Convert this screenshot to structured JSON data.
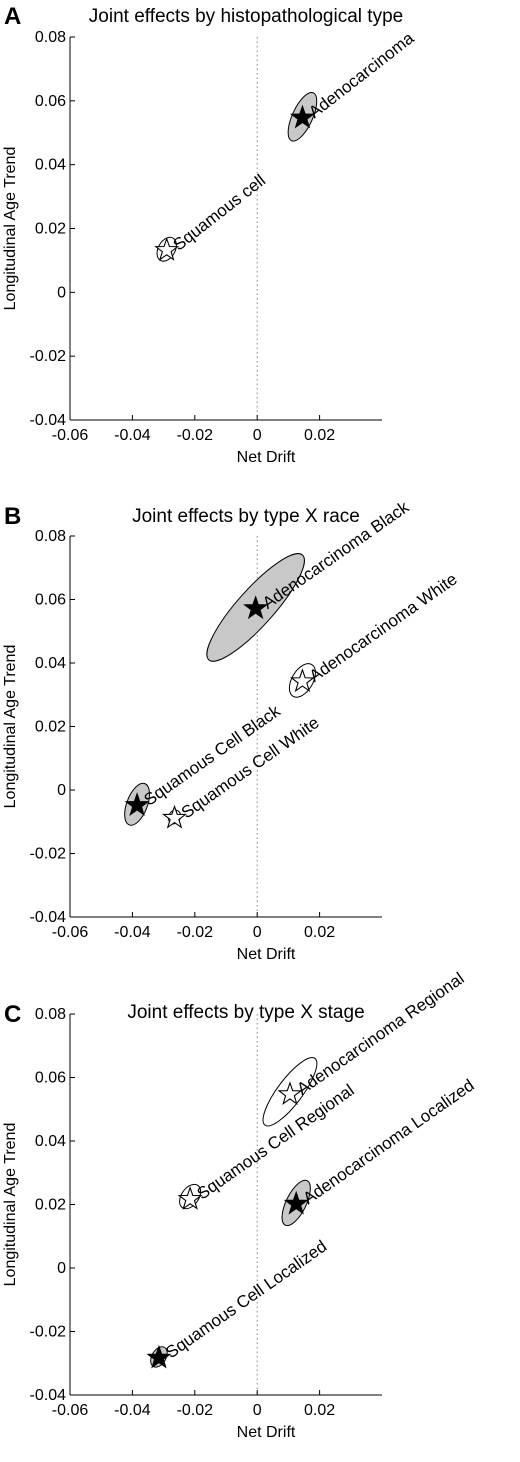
{
  "chart_data": [
    {
      "type": "scatter",
      "panel": "A",
      "title": "Joint effects by histopathological type",
      "xlabel": "Net Drift",
      "ylabel": "Longitudinal Age Trend",
      "xlim": [
        -0.06,
        0.04
      ],
      "ylim": [
        -0.04,
        0.08
      ],
      "xticks": [
        "-0.06",
        "-0.04",
        "-0.02",
        "0",
        "0.02"
      ],
      "yticks": [
        "0.08",
        "0.06",
        "0.04",
        "0.02",
        "0",
        "-0.02",
        "-0.04"
      ],
      "reference_line": "x = 0 (dotted)",
      "points": [
        {
          "label": "Adenocarcinoma",
          "x": 0.0145,
          "y": 0.055,
          "marker": "filled-star",
          "ellipse_fill": "#c8c8c8",
          "ellipse": {
            "center": [
              0.0145,
              0.055
            ],
            "half_major": [
              0.0035,
              0.0075
            ],
            "half_minor_x": 0.0025
          }
        },
        {
          "label": "Squamous cell",
          "x": -0.029,
          "y": 0.0135,
          "marker": "open-star",
          "ellipse_fill": "#ffffff",
          "ellipse": {
            "center": [
              -0.029,
              0.0135
            ],
            "half_major": [
              0.002,
              0.0035
            ],
            "half_minor_x": 0.002
          }
        }
      ]
    },
    {
      "type": "scatter",
      "panel": "B",
      "title": "Joint effects by type X race",
      "xlabel": "Net Drift",
      "ylabel": "Longitudinal Age Trend",
      "xlim": [
        -0.06,
        0.04
      ],
      "ylim": [
        -0.04,
        0.08
      ],
      "xticks": [
        "-0.06",
        "-0.04",
        "-0.02",
        "0",
        "0.02"
      ],
      "yticks": [
        "0.08",
        "0.06",
        "0.04",
        "0.02",
        "0",
        "-0.02",
        "-0.04"
      ],
      "reference_line": "x = 0 (dotted)",
      "points": [
        {
          "label": "Adenocarcinoma Black",
          "x": -0.0005,
          "y": 0.0575,
          "marker": "filled-star",
          "ellipse_fill": "#c8c8c8",
          "ellipse": {
            "center": [
              -0.0005,
              0.0575
            ],
            "half_major": [
              0.015,
              0.0165
            ],
            "half_minor_x": 0.0065
          }
        },
        {
          "label": "Adenocarcinoma White",
          "x": 0.0145,
          "y": 0.0345,
          "marker": "open-star",
          "ellipse_fill": "#ffffff",
          "ellipse": {
            "center": [
              0.0145,
              0.0345
            ],
            "half_major": [
              0.003,
              0.005
            ],
            "half_minor_x": 0.0028
          }
        },
        {
          "label": "Squamous Cell Black",
          "x": -0.0385,
          "y": -0.0045,
          "marker": "filled-star",
          "ellipse_fill": "#c8c8c8",
          "ellipse": {
            "center": [
              -0.0385,
              -0.0045
            ],
            "half_major": [
              0.0025,
              0.0065
            ],
            "half_minor_x": 0.0025
          }
        },
        {
          "label": "Squamous Cell White",
          "x": -0.0265,
          "y": -0.0085,
          "marker": "open-star",
          "ellipse_fill": "#ffffff",
          "ellipse": {
            "center": [
              -0.0265,
              -0.0085
            ],
            "half_major": [
              0.001,
              0.002
            ],
            "half_minor_x": 0.001
          }
        }
      ]
    },
    {
      "type": "scatter",
      "panel": "C",
      "title": "Joint effects by type X stage",
      "xlabel": "Net Drift",
      "ylabel": "Longitudinal Age Trend",
      "xlim": [
        -0.06,
        0.04
      ],
      "ylim": [
        -0.04,
        0.08
      ],
      "xticks": [
        "-0.06",
        "-0.04",
        "-0.02",
        "0",
        "0.02"
      ],
      "yticks": [
        "0.08",
        "0.06",
        "0.04",
        "0.02",
        "0",
        "-0.02",
        "-0.04"
      ],
      "reference_line": "x = 0 (dotted)",
      "points": [
        {
          "label": "Adenocarcinoma Regional",
          "x": 0.0105,
          "y": 0.055,
          "marker": "open-star",
          "ellipse_fill": "#ffffff",
          "ellipse": {
            "center": [
              0.0105,
              0.0555
            ],
            "half_major": [
              0.008,
              0.0105
            ],
            "half_minor_x": 0.0038
          }
        },
        {
          "label": "Adenocarcinoma Localized",
          "x": 0.0125,
          "y": 0.0205,
          "marker": "filled-star",
          "ellipse_fill": "#c8c8c8",
          "ellipse": {
            "center": [
              0.0125,
              0.0205
            ],
            "half_major": [
              0.0035,
              0.007
            ],
            "half_minor_x": 0.0025
          }
        },
        {
          "label": "Squamous Cell Regional",
          "x": -0.0215,
          "y": 0.022,
          "marker": "open-star",
          "ellipse_fill": "#ffffff",
          "ellipse": {
            "center": [
              -0.0215,
              0.0225
            ],
            "half_major": [
              0.0025,
              0.0035
            ],
            "half_minor_x": 0.0022
          }
        },
        {
          "label": "Squamous Cell Localized",
          "x": -0.0315,
          "y": -0.028,
          "marker": "filled-star",
          "ellipse_fill": "#c8c8c8",
          "ellipse": {
            "center": [
              -0.0315,
              -0.028
            ],
            "half_major": [
              0.0018,
              0.003
            ],
            "half_minor_x": 0.0015
          }
        }
      ]
    }
  ]
}
